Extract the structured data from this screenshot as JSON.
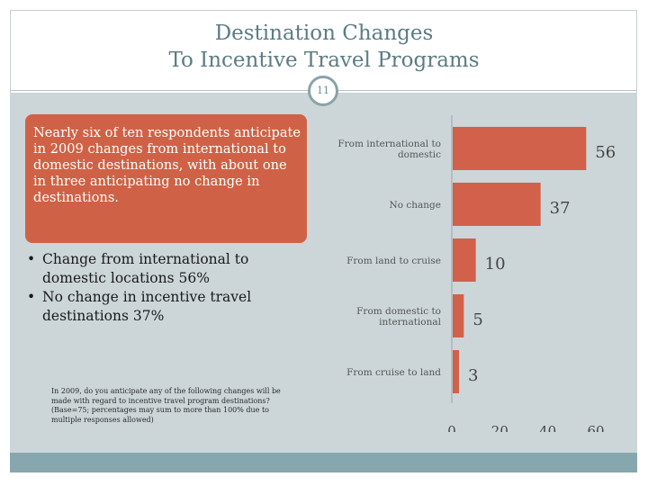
{
  "slide": {
    "title_line1": "Destination Changes",
    "title_line2": "To Incentive Travel Programs",
    "slide_number": "11"
  },
  "callout": {
    "text": "Nearly six of ten respondents anticipate in 2009 changes from international to domestic destinations, with about one in three anticipating no change in destinations."
  },
  "bullets": [
    {
      "text": "Change from international to domestic locations 56%"
    },
    {
      "text": "No change in incentive travel destinations 37%"
    }
  ],
  "note": {
    "text": "In 2009, do you anticipate any of the following changes will be made with regard to incentive travel program destinations? (Base=75; percentages may sum to more than 100% due to multiple responses allowed)"
  },
  "colors": {
    "bar": "#d1614a",
    "title": "#5b7c82",
    "panel": "#ccd6d9",
    "callout": "#cf6246",
    "bottom_bar": "#86a7ad"
  },
  "chart_data": {
    "type": "bar",
    "orientation": "horizontal",
    "categories": [
      [
        "From international to",
        "domestic"
      ],
      [
        "No change"
      ],
      [
        "From land to cruise"
      ],
      [
        "From domestic to",
        "international"
      ],
      [
        "From cruise to land"
      ]
    ],
    "values": [
      56,
      37,
      10,
      5,
      3
    ],
    "xlim": [
      0,
      60
    ],
    "xticks": [
      0,
      20,
      40,
      60
    ],
    "grid": false,
    "legend": "none"
  }
}
